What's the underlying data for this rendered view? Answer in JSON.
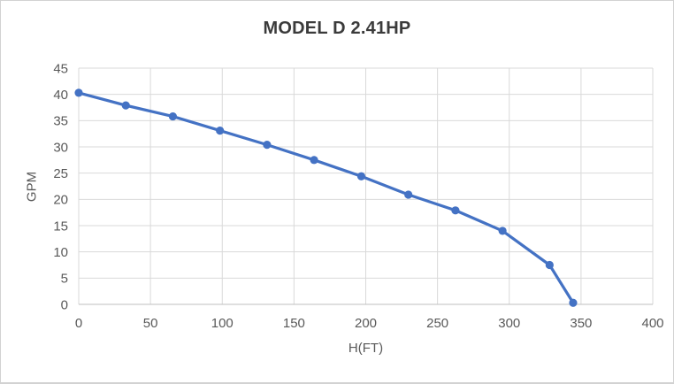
{
  "window": {
    "background_color": "#ffffff",
    "border_color": "#d2d2d2"
  },
  "chart_data": {
    "type": "line",
    "title": "MODEL D 2.41HP",
    "xlabel": "H(FT)",
    "ylabel": "GPM",
    "x": [
      0,
      32.8,
      65.6,
      98.4,
      131.2,
      164.0,
      196.9,
      229.7,
      262.5,
      295.3,
      328.1,
      344.5
    ],
    "y": [
      40.3,
      37.9,
      35.8,
      33.1,
      30.4,
      27.5,
      24.4,
      20.9,
      17.9,
      14.0,
      7.5,
      0.3
    ],
    "xlim": [
      0,
      400
    ],
    "ylim": [
      0,
      45
    ],
    "x_ticks": [
      0,
      50,
      100,
      150,
      200,
      250,
      300,
      350,
      400
    ],
    "y_ticks": [
      0,
      5,
      10,
      15,
      20,
      25,
      30,
      35,
      40,
      45
    ],
    "grid": true,
    "legend_position": "none",
    "line_color": "#4472C4",
    "marker": "circle",
    "gridline_color": "#d9d9d9",
    "axis_line_color": "#bfbfbf",
    "tick_label_color": "#595959",
    "title_color": "#3b3b3b"
  }
}
